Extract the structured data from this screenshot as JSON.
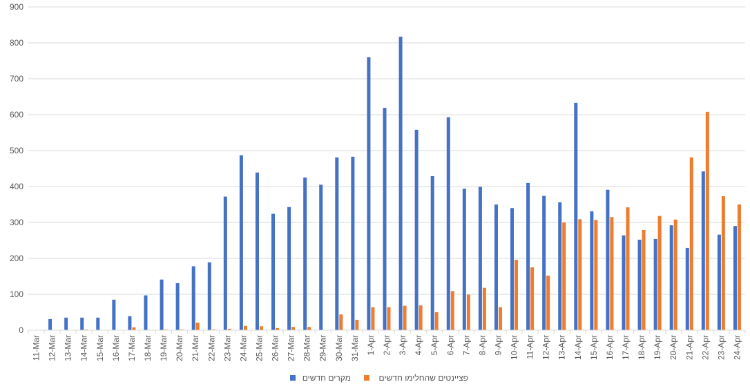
{
  "chart_data": {
    "type": "bar",
    "title": "",
    "xlabel": "",
    "ylabel": "",
    "ylim": [
      0,
      900
    ],
    "yticks": [
      0,
      100,
      200,
      300,
      400,
      500,
      600,
      700,
      800,
      900
    ],
    "grid": true,
    "legend_position": "bottom",
    "categories": [
      "11-Mar",
      "12-Mar",
      "13-Mar",
      "14-Mar",
      "15-Mar",
      "16-Mar",
      "17-Mar",
      "18-Mar",
      "19-Mar",
      "20-Mar",
      "21-Mar",
      "22-Mar",
      "23-Mar",
      "24-Mar",
      "25-Mar",
      "26-Mar",
      "27-Mar",
      "28-Mar",
      "29-Mar",
      "30-Mar",
      "31-Mar",
      "1-Apr",
      "2-Apr",
      "3-Apr",
      "4-Apr",
      "5-Apr",
      "6-Apr",
      "7-Apr",
      "8-Apr",
      "9-Apr",
      "10-Apr",
      "11-Apr",
      "12-Apr",
      "13-Apr",
      "14-Apr",
      "15-Apr",
      "16-Apr",
      "17-Apr",
      "18-Apr",
      "19-Apr",
      "20-Apr",
      "21-Apr",
      "22-Apr",
      "23-Apr",
      "24-Apr"
    ],
    "series": [
      {
        "name": "מקרים חדשים",
        "color": "#4472C4",
        "values": [
          0,
          31,
          35,
          35,
          35,
          85,
          39,
          97,
          141,
          131,
          178,
          189,
          372,
          487,
          439,
          324,
          343,
          425,
          405,
          481,
          483,
          760,
          619,
          817,
          558,
          429,
          593,
          394,
          399,
          350,
          340,
          410,
          374,
          356,
          633,
          331,
          391,
          264,
          252,
          254,
          292,
          229,
          442,
          266,
          290
        ]
      },
      {
        "name": "פציינטים שהחלימו חדשים",
        "color": "#ED7D31",
        "values": [
          0,
          0,
          0,
          2,
          0,
          0,
          8,
          0,
          2,
          2,
          21,
          2,
          4,
          12,
          11,
          6,
          9,
          9,
          0,
          44,
          29,
          64,
          64,
          68,
          69,
          50,
          109,
          99,
          118,
          64,
          196,
          175,
          152,
          300,
          309,
          307,
          315,
          342,
          279,
          318,
          308,
          481,
          608,
          373,
          350
        ]
      }
    ]
  }
}
